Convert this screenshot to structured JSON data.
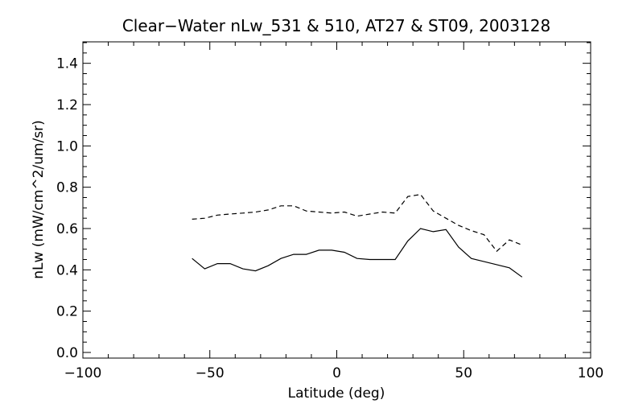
{
  "chart_data": {
    "type": "line",
    "title": "Clear−Water nLw_531 & 510, AT27 & ST09, 2003128",
    "xlabel": "Latitude (deg)",
    "ylabel": "nLw (mW/cm^2/um/sr)",
    "xlim": [
      -100,
      100
    ],
    "ylim": [
      0.0,
      1.5
    ],
    "x_ticks": [
      -100,
      -50,
      0,
      50,
      100
    ],
    "x_tick_labels": [
      "−100",
      "−50",
      "0",
      "50",
      "100"
    ],
    "y_ticks": [
      0.0,
      0.2,
      0.4,
      0.6,
      0.8,
      1.0,
      1.2,
      1.4
    ],
    "y_tick_labels": [
      "0.0",
      "0.2",
      "0.4",
      "0.6",
      "0.8",
      "1.0",
      "1.2",
      "1.4"
    ],
    "grid": false,
    "series": [
      {
        "style": "dashed",
        "color": "#000000",
        "x": [
          -57,
          -52,
          -47,
          -42,
          -37,
          -32,
          -27,
          -22,
          -17,
          -12,
          -7,
          -2,
          3,
          8,
          13,
          18,
          23,
          28,
          33,
          38,
          43,
          48,
          53,
          58,
          63,
          68,
          73
        ],
        "y": [
          0.645,
          0.65,
          0.665,
          0.67,
          0.675,
          0.68,
          0.69,
          0.71,
          0.71,
          0.685,
          0.68,
          0.675,
          0.68,
          0.66,
          0.67,
          0.68,
          0.675,
          0.755,
          0.765,
          0.685,
          0.65,
          0.615,
          0.59,
          0.57,
          0.49,
          0.545,
          0.52
        ]
      },
      {
        "style": "solid",
        "color": "#000000",
        "x": [
          -57,
          -52,
          -47,
          -42,
          -37,
          -32,
          -27,
          -22,
          -17,
          -12,
          -7,
          -2,
          3,
          8,
          13,
          18,
          23,
          28,
          33,
          38,
          43,
          48,
          53,
          58,
          63,
          68,
          73
        ],
        "y": [
          0.455,
          0.405,
          0.43,
          0.43,
          0.405,
          0.395,
          0.42,
          0.455,
          0.475,
          0.475,
          0.495,
          0.495,
          0.485,
          0.455,
          0.45,
          0.45,
          0.45,
          0.54,
          0.6,
          0.585,
          0.595,
          0.51,
          0.455,
          0.44,
          0.425,
          0.41,
          0.365
        ]
      }
    ]
  }
}
